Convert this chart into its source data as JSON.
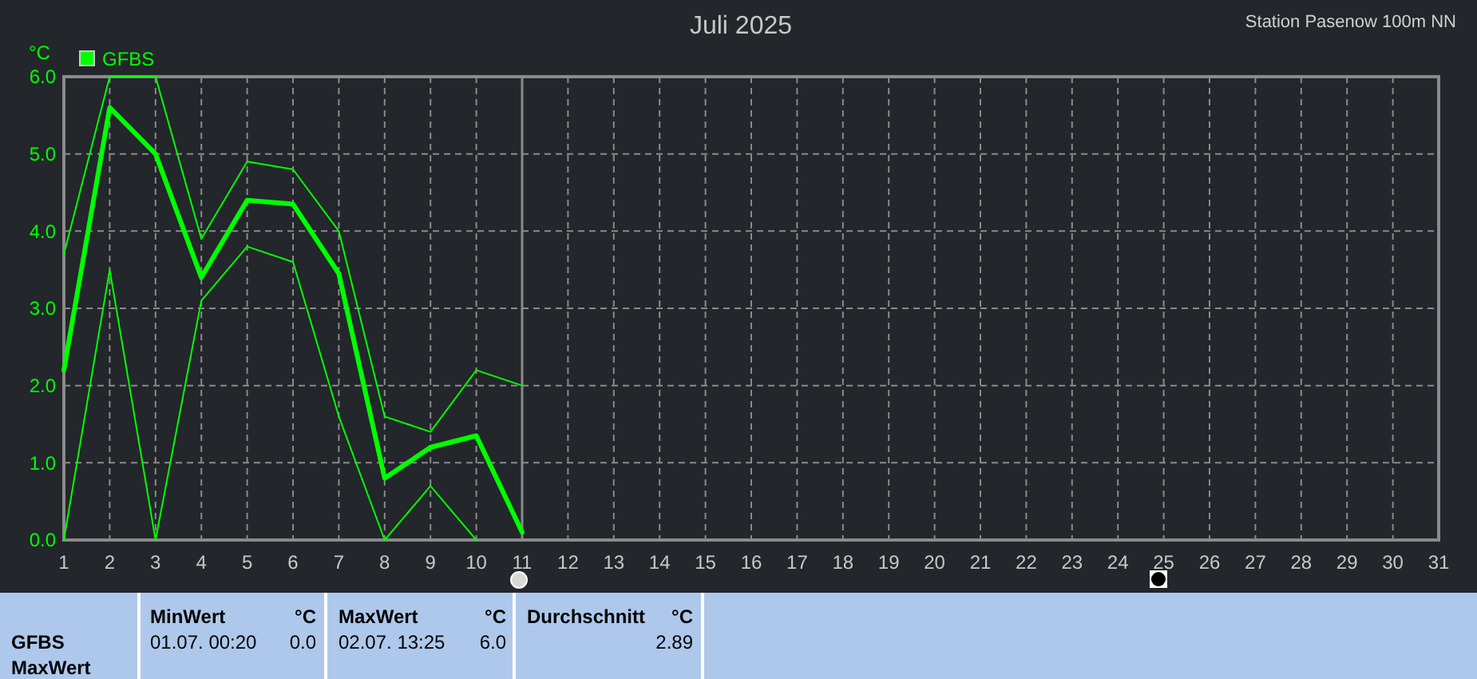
{
  "chart_data": {
    "type": "line",
    "title": "Juli 2025",
    "subtitle": "Station Pasenow 100m NN",
    "ylabel": "°C",
    "x": [
      1,
      2,
      3,
      4,
      5,
      6,
      7,
      8,
      9,
      10,
      11
    ],
    "series": [
      {
        "name": "GFBS",
        "color": "#00ff00",
        "values": [
          2.2,
          5.6,
          5.0,
          3.4,
          4.4,
          4.35,
          3.45,
          0.8,
          1.2,
          1.35,
          0.1
        ]
      },
      {
        "color": "#00ff00",
        "values": [
          3.7,
          6.0,
          6.0,
          3.9,
          4.9,
          4.8,
          4.0,
          1.6,
          1.4,
          2.2,
          2.0
        ]
      },
      {
        "color": "#00ff00",
        "values": [
          0.0,
          3.5,
          0.0,
          3.1,
          3.8,
          3.6,
          1.6,
          0.0,
          0.7,
          0.0,
          null
        ]
      }
    ],
    "xlim": [
      1,
      31
    ],
    "xticks": [
      1,
      2,
      3,
      4,
      5,
      6,
      7,
      8,
      9,
      10,
      11,
      12,
      13,
      14,
      15,
      16,
      17,
      18,
      19,
      20,
      21,
      22,
      23,
      24,
      25,
      26,
      27,
      28,
      29,
      30,
      31
    ],
    "ylim": [
      0,
      6
    ],
    "yticks": [
      {
        "value": 0,
        "label": "0.0"
      },
      {
        "value": 1,
        "label": "1.0"
      },
      {
        "value": 2,
        "label": "2.0"
      },
      {
        "value": 3,
        "label": "3.0"
      },
      {
        "value": 4,
        "label": "4.0"
      },
      {
        "value": 5,
        "label": "5.0"
      },
      {
        "value": 6,
        "label": "6.0"
      }
    ],
    "ref_lines": [
      {
        "axis": "x",
        "value": 11,
        "color": "#8a8a8a"
      }
    ],
    "grid": true,
    "legend": "top left",
    "marker": "none",
    "line_style": "solid",
    "annotations": [
      "GFBS",
      "MaxWert",
      "MinWert",
      "°C",
      "01.07.  00:20",
      "0.0",
      "MaxWert",
      "°C",
      "02.07.  13:25",
      "6.0",
      "Durchschnitt",
      "°C",
      "2.89"
    ]
  }
}
